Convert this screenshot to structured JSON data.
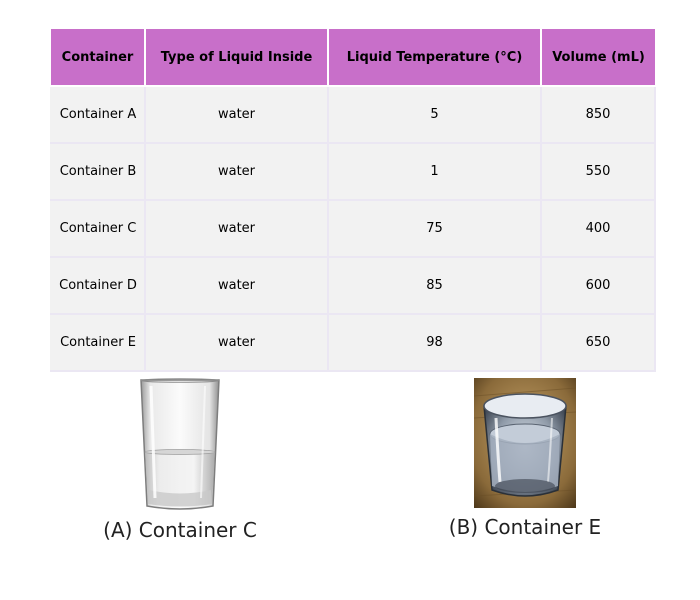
{
  "table": {
    "headers": [
      "Container",
      "Type of Liquid Inside",
      "Liquid Temperature (°C)",
      "Volume (mL)"
    ],
    "rows": [
      [
        "Container A",
        "water",
        "5",
        "850"
      ],
      [
        "Container B",
        "water",
        "1",
        "550"
      ],
      [
        "Container C",
        "water",
        "75",
        "400"
      ],
      [
        "Container D",
        "water",
        "85",
        "600"
      ],
      [
        "Container E",
        "water",
        "98",
        "650"
      ]
    ]
  },
  "figures": {
    "a": {
      "caption": "(A) Container C"
    },
    "b": {
      "caption": "(B) Container E"
    }
  },
  "colors": {
    "header_bg": "#c86fc9",
    "cell_bg": "#f2f2f2",
    "grid": "#ebe7f3"
  }
}
